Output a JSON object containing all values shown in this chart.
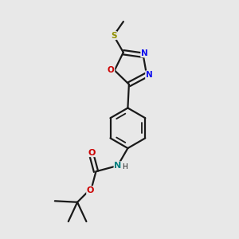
{
  "bg_color": "#e8e8e8",
  "bond_color": "#1a1a1a",
  "bond_width": 1.6,
  "colors": {
    "N": "#1010ee",
    "O": "#cc0000",
    "S": "#909000",
    "C": "#1a1a1a",
    "NH": "#008080"
  },
  "figsize": [
    3.0,
    3.0
  ],
  "dpi": 100,
  "xlim": [
    0,
    10
  ],
  "ylim": [
    0,
    10
  ]
}
